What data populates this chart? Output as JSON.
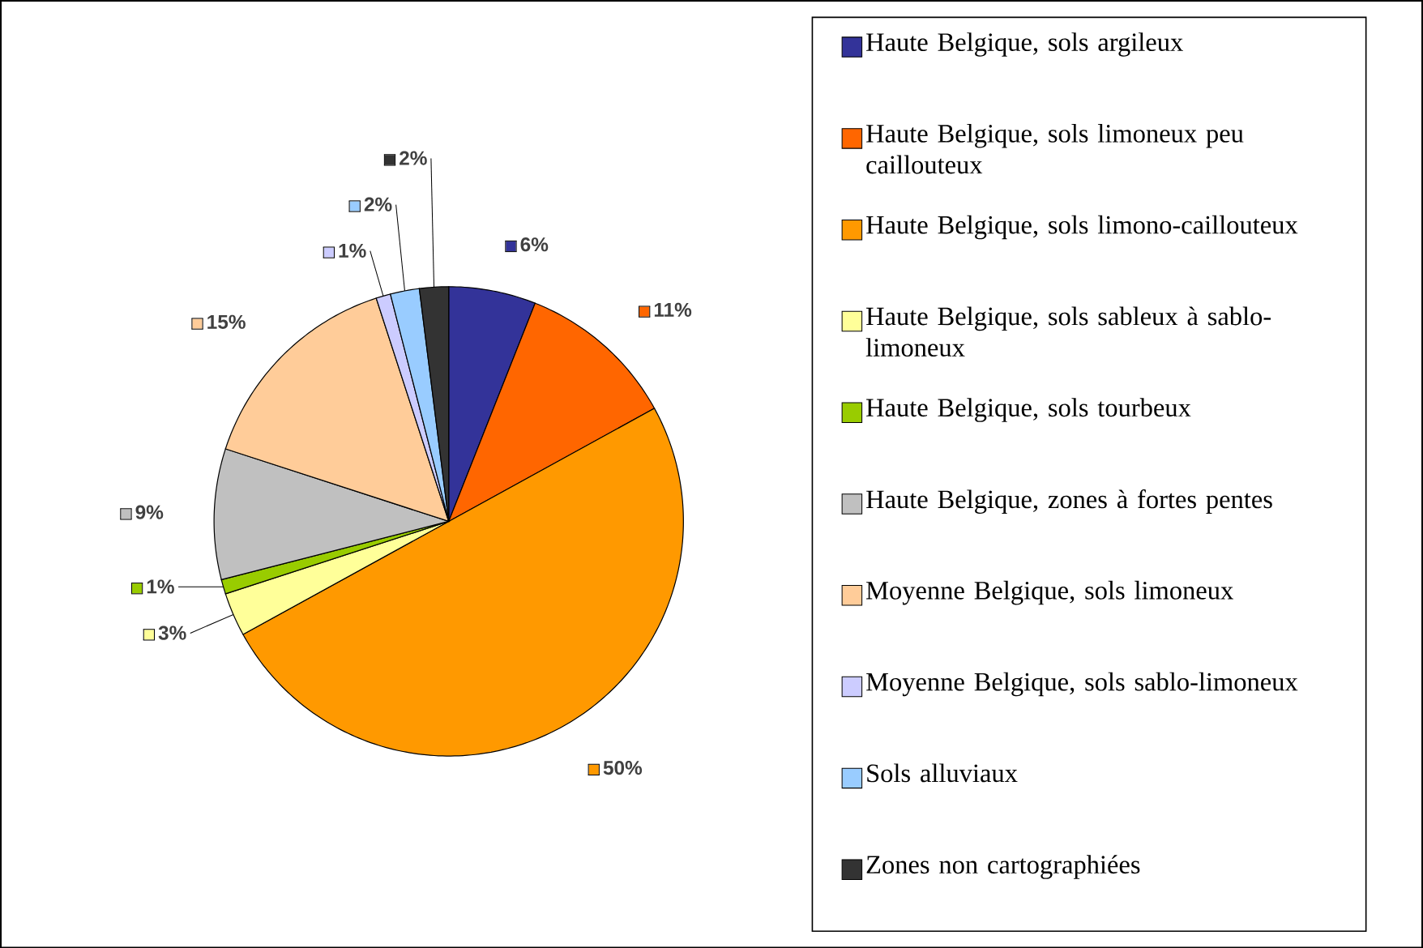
{
  "chart_data": {
    "type": "pie",
    "categories": [
      "Haute Belgique, sols argileux",
      "Haute Belgique, sols limoneux peu caillouteux",
      "Haute Belgique, sols limono-caillouteux",
      "Haute Belgique, sols sableux à sablo-limoneux",
      "Haute Belgique, sols tourbeux",
      "Haute Belgique, zones à fortes pentes",
      "Moyenne Belgique, sols limoneux",
      "Moyenne Belgique, sols sablo-limoneux",
      "Sols alluviaux",
      "Zones non cartographiées"
    ],
    "values": [
      6,
      11,
      50,
      3,
      1,
      9,
      15,
      1,
      2,
      2
    ],
    "colors": [
      "#333399",
      "#ff6600",
      "#ff9900",
      "#ffff99",
      "#99cc00",
      "#c0c0c0",
      "#ffcc99",
      "#ccccff",
      "#99ccff",
      "#333333"
    ],
    "value_labels": [
      "6%",
      "11%",
      "50%",
      "3%",
      "1%",
      "9%",
      "15%",
      "1%",
      "2%",
      "2%"
    ],
    "legend": "right"
  }
}
